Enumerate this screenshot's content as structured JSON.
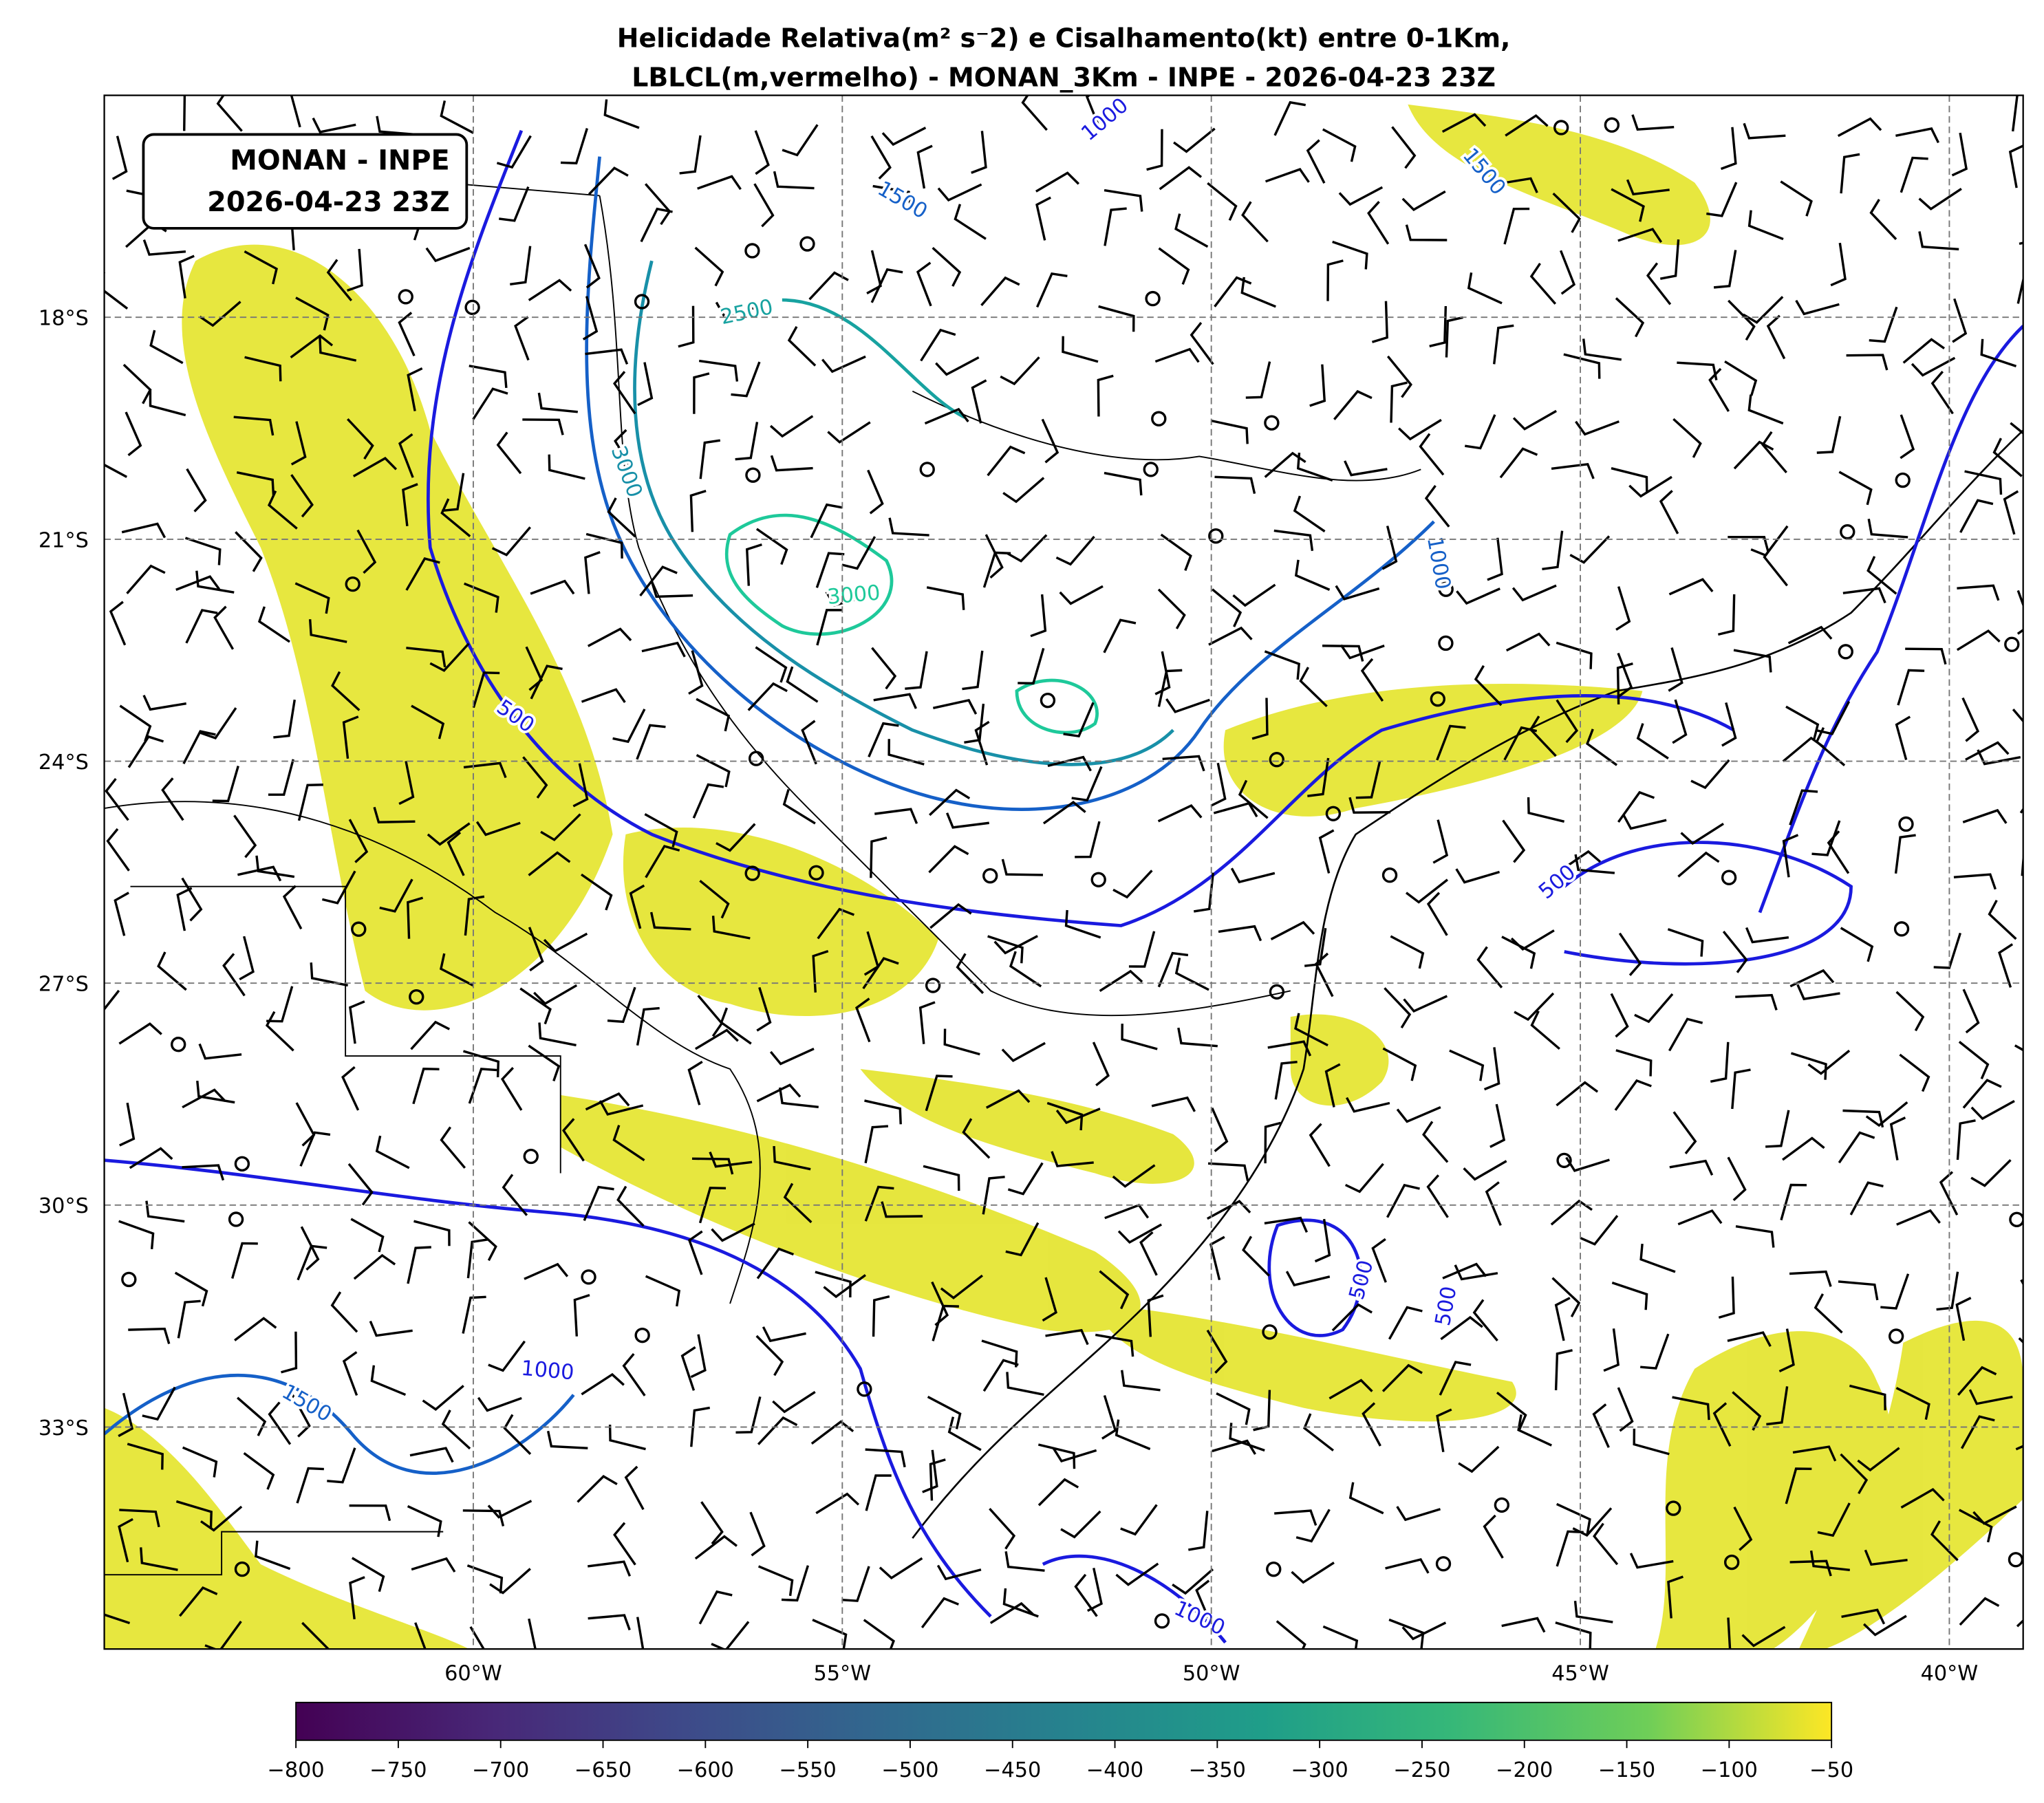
{
  "title": [
    "Helicidade Relativa(m² s⁻2) e Cisalhamento(kt) entre 0-1Km,",
    "LBLCL(m,vermelho) - MONAN_3Km - INPE - 2026-04-23 23Z"
  ],
  "info_box": [
    "MONAN - INPE",
    "2026-04-23 23Z"
  ],
  "map": {
    "lon_lim": [
      -65,
      -39
    ],
    "lat_lim": [
      -36,
      -15
    ],
    "lon_ticks": [
      {
        "value": -60,
        "label": "60°W"
      },
      {
        "value": -55,
        "label": "55°W"
      },
      {
        "value": -50,
        "label": "50°W"
      },
      {
        "value": -45,
        "label": "45°W"
      },
      {
        "value": -40,
        "label": "40°W"
      }
    ],
    "lat_ticks": [
      {
        "value": -18,
        "label": "18°S"
      },
      {
        "value": -21,
        "label": "21°S"
      },
      {
        "value": -24,
        "label": "24°S"
      },
      {
        "value": -27,
        "label": "27°S"
      },
      {
        "value": -30,
        "label": "30°S"
      },
      {
        "value": -33,
        "label": "33°S"
      }
    ],
    "contour_labels": [
      "1000",
      "1500",
      "1500",
      "2500",
      "3000",
      "3000",
      "1000",
      "500",
      "500",
      "500",
      "500",
      "1000",
      "1500",
      "1000"
    ]
  },
  "colorbar": {
    "lim": [
      -800,
      -50
    ],
    "ticks": [
      {
        "value": -800,
        "label": "−800"
      },
      {
        "value": -750,
        "label": "−750"
      },
      {
        "value": -700,
        "label": "−700"
      },
      {
        "value": -650,
        "label": "−650"
      },
      {
        "value": -600,
        "label": "−600"
      },
      {
        "value": -550,
        "label": "−550"
      },
      {
        "value": -500,
        "label": "−500"
      },
      {
        "value": -450,
        "label": "−450"
      },
      {
        "value": -400,
        "label": "−400"
      },
      {
        "value": -350,
        "label": "−350"
      },
      {
        "value": -300,
        "label": "−300"
      },
      {
        "value": -250,
        "label": "−250"
      },
      {
        "value": -200,
        "label": "−200"
      },
      {
        "value": -150,
        "label": "−150"
      },
      {
        "value": -100,
        "label": "−100"
      },
      {
        "value": -50,
        "label": "−50"
      }
    ]
  }
}
